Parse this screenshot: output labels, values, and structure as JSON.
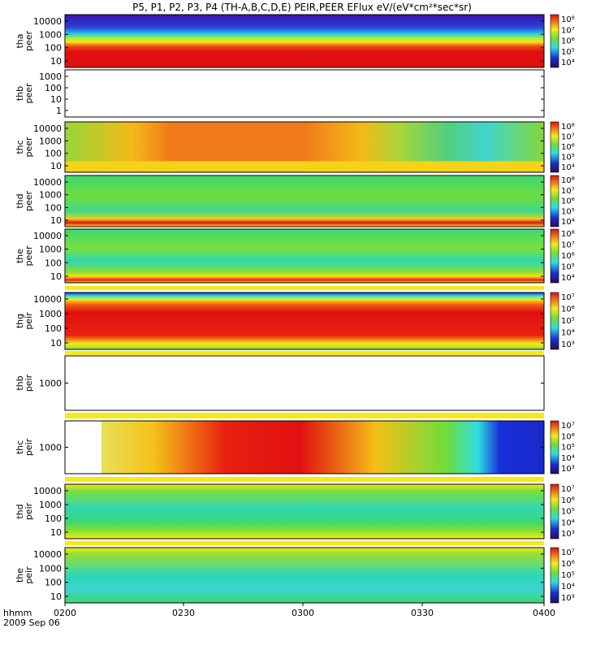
{
  "title": "P5, P1, P2, P3, P4 (TH-A,B,C,D,E) PEIR,PEER EFlux eV/(eV*cm²*sec*sr)",
  "time_axis": {
    "label": "hhmm",
    "date": "2009 Sep 06",
    "ticks": [
      "0200",
      "0230",
      "0300",
      "0330",
      "0400"
    ]
  },
  "colors": {
    "red": "#e81a10",
    "orange": "#f07a1a",
    "yellow": "#f5ea18",
    "green": "#6fdc3c",
    "cyan": "#2ee0e0",
    "blue": "#1830d8",
    "navy": "#2a14a0"
  },
  "chart_data": [
    {
      "type": "heatmap",
      "ylabel": [
        "tha",
        "peer"
      ],
      "y_ticks": [
        "10",
        "100",
        "1000",
        "10000"
      ],
      "colorbar_ticks": [
        "10⁴",
        "10⁵",
        "10⁶",
        "10⁷",
        "10⁸"
      ],
      "bands": [
        [
          "#3b12b0",
          0.0
        ],
        [
          "#2e3fd8",
          0.24
        ],
        [
          "#1fc8e6",
          0.36
        ],
        [
          "#aef03a",
          0.45
        ],
        [
          "#f8e11a",
          0.52
        ],
        [
          "#f04818",
          0.6
        ],
        [
          "#e01010",
          0.7
        ],
        [
          "#e01010",
          1.0
        ]
      ]
    },
    {
      "type": "heatmap",
      "ylabel": [
        "thb",
        "peer"
      ],
      "y_ticks": [
        "1",
        "10",
        "100",
        "1000"
      ],
      "empty": true
    },
    {
      "type": "heatmap",
      "ylabel": [
        "thc",
        "peer"
      ],
      "y_ticks": [
        "10",
        "100",
        "1000",
        "10000"
      ],
      "colorbar_ticks": [
        "10⁴",
        "10⁵",
        "10⁶",
        "10⁷",
        "10⁸"
      ],
      "bands": [
        [
          "#f07a1a",
          0.0
        ],
        [
          "#f07a1a",
          1.0
        ]
      ]
    },
    {
      "type": "heatmap",
      "ylabel": [
        "thd",
        "peer"
      ],
      "y_ticks": [
        "10",
        "100",
        "1000",
        "10000"
      ],
      "colorbar_ticks": [
        "10⁴",
        "10⁵",
        "10⁶",
        "10⁷",
        "10⁸"
      ],
      "bands": [
        [
          "#3dd870",
          0.0
        ],
        [
          "#6fdc3c",
          0.4
        ],
        [
          "#3fd88a",
          0.7
        ],
        [
          "#e8d01a",
          0.85
        ],
        [
          "#e01010",
          0.92
        ],
        [
          "#f8e11a",
          1.0
        ]
      ]
    },
    {
      "type": "heatmap",
      "ylabel": [
        "the",
        "peer"
      ],
      "y_ticks": [
        "10",
        "100",
        "1000",
        "10000"
      ],
      "colorbar_ticks": [
        "10⁴",
        "10⁵",
        "10⁶",
        "10⁷",
        "10⁸"
      ],
      "bands": [
        [
          "#3dd870",
          0.0
        ],
        [
          "#7ae03c",
          0.35
        ],
        [
          "#2fd6b4",
          0.6
        ],
        [
          "#88e030",
          0.8
        ],
        [
          "#f8e11a",
          0.88
        ],
        [
          "#e82010",
          0.95
        ],
        [
          "#f8e11a",
          1.0
        ]
      ]
    },
    {
      "type": "heatmap",
      "ylabel": [
        "thg",
        "peir"
      ],
      "y_ticks": [
        "10",
        "100",
        "1000",
        "10000"
      ],
      "colorbar_ticks": [
        "10³",
        "10⁴",
        "10⁵",
        "10⁶",
        "10⁷"
      ],
      "bands": [
        [
          "#1830d8",
          0.0
        ],
        [
          "#2ee0e0",
          0.06
        ],
        [
          "#f5ea18",
          0.12
        ],
        [
          "#f05818",
          0.22
        ],
        [
          "#e01010",
          0.35
        ],
        [
          "#e82010",
          0.75
        ],
        [
          "#f5ea18",
          0.9
        ],
        [
          "#88e030",
          1.0
        ]
      ]
    },
    {
      "type": "heatmap",
      "ylabel": [
        "thb",
        "peir"
      ],
      "y_ticks": [
        "1000"
      ],
      "empty": true
    },
    {
      "type": "heatmap",
      "ylabel": [
        "thc",
        "peir"
      ],
      "y_ticks": [
        "1000"
      ],
      "colorbar_ticks": [
        "10³",
        "10⁴",
        "10⁵",
        "10⁶",
        "10⁷"
      ],
      "time_gradient": true
    },
    {
      "type": "heatmap",
      "ylabel": [
        "thd",
        "peir"
      ],
      "y_ticks": [
        "10",
        "100",
        "1000",
        "10000"
      ],
      "colorbar_ticks": [
        "10³",
        "10⁴",
        "10⁵",
        "10⁶",
        "10⁷"
      ],
      "bands": [
        [
          "#f5ea18",
          0.0
        ],
        [
          "#7ae03c",
          0.12
        ],
        [
          "#2fd6b4",
          0.45
        ],
        [
          "#3dd870",
          0.7
        ],
        [
          "#88e030",
          0.85
        ],
        [
          "#f5ea18",
          1.0
        ]
      ]
    },
    {
      "type": "heatmap",
      "ylabel": [
        "the",
        "peir"
      ],
      "y_ticks": [
        "10",
        "100",
        "1000",
        "10000"
      ],
      "colorbar_ticks": [
        "10³",
        "10⁴",
        "10⁵",
        "10⁶",
        "10⁷"
      ],
      "bands": [
        [
          "#f5ea18",
          0.0
        ],
        [
          "#9ee030",
          0.1
        ],
        [
          "#2fd6b4",
          0.5
        ],
        [
          "#3bd4d0",
          0.75
        ],
        [
          "#3dd870",
          1.0
        ]
      ]
    }
  ]
}
